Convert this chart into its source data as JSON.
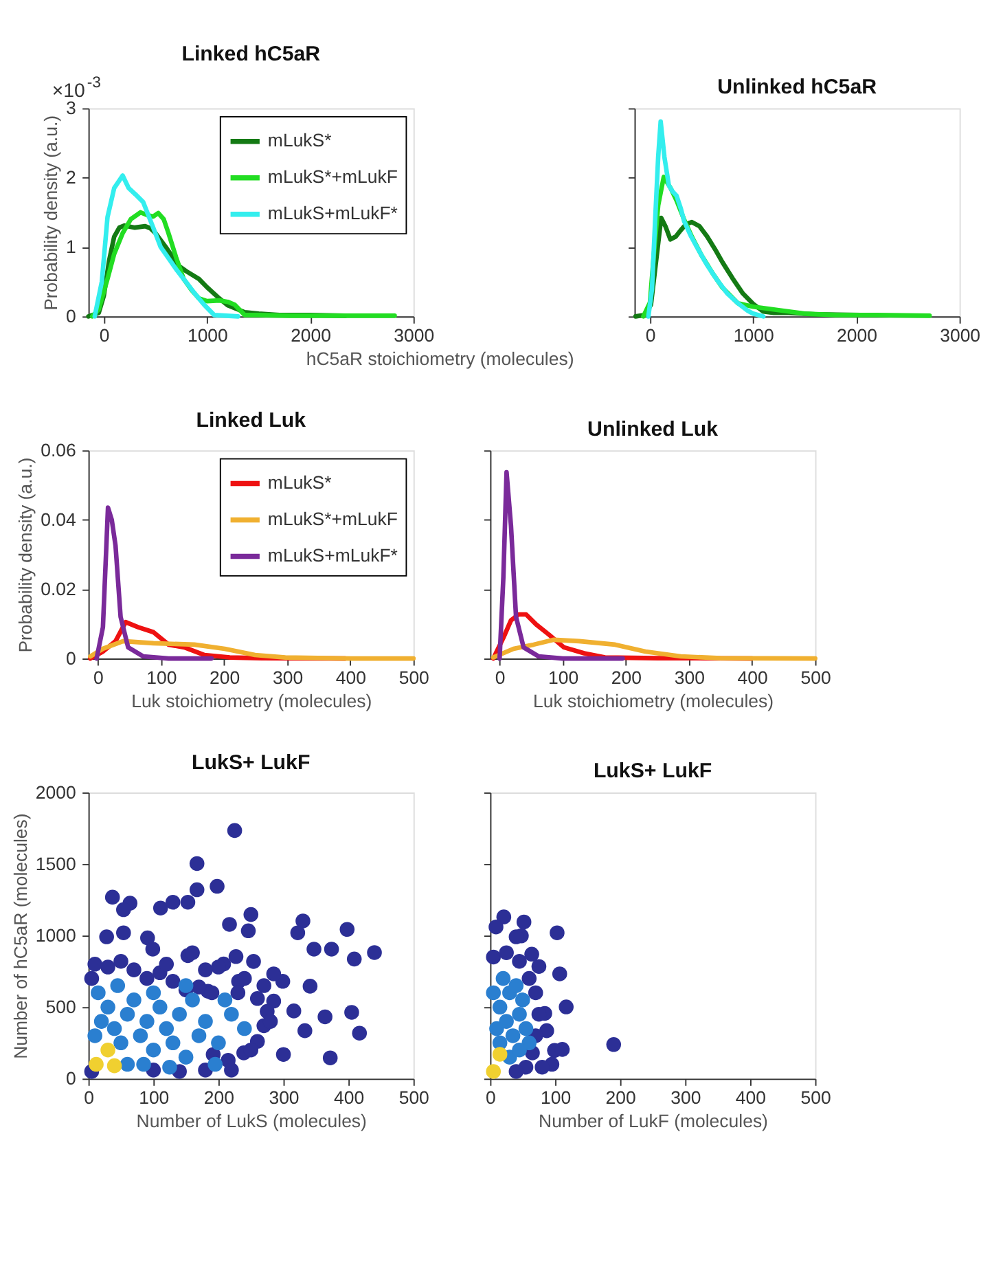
{
  "chart_data": [
    {
      "type": "line",
      "title": "Linked hC5aR",
      "xlabel": "hC5aR stoichiometry (molecules)",
      "ylabel": "Probability density (a.u.)",
      "xlim": [
        -150,
        3000
      ],
      "xticks": [
        0,
        1000,
        2000,
        3000
      ],
      "ylim": [
        0,
        3
      ],
      "yticks": [
        0,
        1,
        2,
        3
      ],
      "legend": "top right",
      "annotations": [
        "×10$^{-3}$"
      ],
      "series": [
        {
          "name": "mLukS*",
          "color": "#147a14",
          "x": [
            -150,
            -50,
            0,
            50,
            100,
            150,
            200,
            300,
            400,
            450,
            500,
            600,
            724,
            800,
            921,
            1000,
            1118,
            1200,
            1365,
            1500,
            1700,
            2000,
            2340
          ],
          "values": [
            0,
            0.05,
            0.3,
            0.8,
            1.15,
            1.28,
            1.31,
            1.28,
            1.3,
            1.27,
            1.2,
            1.0,
            0.73,
            0.65,
            0.54,
            0.42,
            0.26,
            0.16,
            0.06,
            0.04,
            0.02,
            0.02,
            0.01
          ]
        },
        {
          "name": "mLukS*+mLukF",
          "color": "#22dd22",
          "x": [
            -113,
            -50,
            35,
            100,
            182,
            260,
            355,
            420,
            478,
            527,
            580,
            626,
            700,
            773,
            850,
            921,
            1000,
            1118,
            1200,
            1266,
            1365,
            1500,
            1800,
            2200,
            2818
          ],
          "values": [
            0,
            0.1,
            0.54,
            0.9,
            1.2,
            1.4,
            1.5,
            1.46,
            1.44,
            1.49,
            1.4,
            1.2,
            0.85,
            0.54,
            0.38,
            0.26,
            0.22,
            0.23,
            0.21,
            0.17,
            0.02,
            0.02,
            0.01,
            0.01,
            0.01
          ]
        },
        {
          "name": "mLukS+mLukF*",
          "color": "#33eeee",
          "x": [
            -89,
            -20,
            35,
            100,
            182,
            240,
            305,
            380,
            478,
            550,
            626,
            700,
            773,
            870,
            970,
            1069,
            1300
          ],
          "values": [
            0,
            0.5,
            1.43,
            1.85,
            2.03,
            1.85,
            1.76,
            1.65,
            1.28,
            1.0,
            0.84,
            0.68,
            0.54,
            0.35,
            0.17,
            0.02,
            0
          ]
        }
      ]
    },
    {
      "type": "line",
      "title": "Unlinked hC5aR",
      "xlim": [
        -150,
        3000
      ],
      "xticks": [
        0,
        1000,
        2000,
        3000
      ],
      "ylim": [
        0,
        3
      ],
      "yticks": [
        0,
        1,
        2,
        3
      ],
      "tick_labels": "x",
      "series": [
        {
          "color": "#147a14",
          "x": [
            -139,
            -50,
            10,
            60,
            109,
            150,
            198,
            250,
            297,
            350,
            406,
            480,
            555,
            630,
            703,
            800,
            901,
            1000,
            1099,
            1200,
            1347,
            1600,
            2040
          ],
          "values": [
            0,
            0.02,
            0.17,
            0.8,
            1.42,
            1.3,
            1.11,
            1.15,
            1.24,
            1.33,
            1.36,
            1.3,
            1.15,
            0.97,
            0.78,
            0.55,
            0.33,
            0.18,
            0.07,
            0.05,
            0.05,
            0.03,
            0.02
          ]
        },
        {
          "color": "#22dd22",
          "x": [
            -64,
            0,
            35,
            80,
            134,
            200,
            258,
            330,
            406,
            500,
            604,
            700,
            852,
            1000,
            1149,
            1297,
            1500,
            1800,
            2200,
            2710
          ],
          "values": [
            0,
            0.2,
            0.84,
            1.6,
            2.01,
            1.85,
            1.67,
            1.4,
            1.15,
            0.88,
            0.63,
            0.42,
            0.19,
            0.14,
            0.11,
            0.08,
            0.04,
            0.02,
            0.02,
            0.01
          ]
        },
        {
          "color": "#33eeee",
          "x": [
            -15,
            20,
            50,
            80,
            104,
            140,
            183,
            220,
            258,
            300,
            332,
            400,
            455,
            550,
            653,
            750,
            852,
            950,
            1000,
            1099
          ],
          "values": [
            0,
            0.4,
            1.37,
            2.3,
            2.81,
            2.3,
            1.89,
            1.8,
            1.74,
            1.55,
            1.37,
            1.15,
            1.0,
            0.75,
            0.52,
            0.33,
            0.19,
            0.08,
            0.04,
            0
          ]
        }
      ]
    },
    {
      "type": "line",
      "title": "Linked Luk",
      "xlabel": "Luk stoichiometry (molecules)",
      "ylabel": "Probability density (a.u.)",
      "xlim": [
        -15,
        500
      ],
      "xticks": [
        0,
        100,
        200,
        300,
        400,
        500
      ],
      "ylim": [
        0,
        0.06
      ],
      "yticks": [
        0,
        0.02,
        0.04,
        0.06
      ],
      "legend": "top right",
      "series": [
        {
          "name": "mLukS*",
          "color": "#ee1111",
          "x": [
            -12,
            8,
            28,
            44,
            64,
            88,
            112,
            137,
            169,
            209,
            260,
            392
          ],
          "values": [
            0,
            0.002,
            0.005,
            0.0105,
            0.009,
            0.0076,
            0.004,
            0.0032,
            0.001,
            0.0003,
            0.0001,
            0
          ]
        },
        {
          "name": "mLukS*+mLukF",
          "color": "#f0b030",
          "x": [
            -12,
            8,
            40,
            88,
            153,
            201,
            249,
            297,
            400,
            500
          ],
          "values": [
            0.0006,
            0.0028,
            0.005,
            0.0044,
            0.004,
            0.0028,
            0.001,
            0.0003,
            0,
            0
          ]
        },
        {
          "name": "mLukS+mLukF*",
          "color": "#7a2a9a",
          "x": [
            -2,
            8,
            16,
            22,
            28,
            36,
            48,
            72,
            112,
            180
          ],
          "values": [
            0,
            0.009,
            0.0435,
            0.04,
            0.0325,
            0.012,
            0.0032,
            0.0006,
            0,
            0
          ]
        }
      ]
    },
    {
      "type": "line",
      "title": "Unlinked Luk",
      "xlabel": "Luk stoichiometry (molecules)",
      "xlim": [
        -15,
        500
      ],
      "xticks": [
        0,
        100,
        200,
        300,
        400,
        500
      ],
      "ylim": [
        0,
        0.06
      ],
      "yticks": [
        0,
        0.02,
        0.04,
        0.06
      ],
      "tick_labels": "x",
      "series": [
        {
          "color": "#ee1111",
          "x": [
            -10,
            6,
            18,
            30,
            42,
            58,
            78,
            102,
            134,
            167,
            250,
            400
          ],
          "values": [
            0,
            0.006,
            0.011,
            0.0127,
            0.0127,
            0.0098,
            0.0069,
            0.0032,
            0.0015,
            0.0003,
            0.0001,
            0
          ]
        },
        {
          "color": "#f0b030",
          "x": [
            -10,
            22,
            54,
            86,
            126,
            183,
            231,
            287,
            350,
            500
          ],
          "values": [
            0.0003,
            0.0028,
            0.004,
            0.0054,
            0.005,
            0.004,
            0.002,
            0.0006,
            0.0001,
            0
          ]
        },
        {
          "color": "#7a2a9a",
          "x": [
            0,
            6,
            11,
            18,
            26,
            38,
            62,
            100,
            195
          ],
          "values": [
            0,
            0.0237,
            0.0537,
            0.0383,
            0.012,
            0.0032,
            0.0006,
            0,
            0
          ]
        }
      ]
    },
    {
      "type": "scatter",
      "title": "LukS+ LukF",
      "xlabel": "Number of LukS (molecules)",
      "ylabel": "Number of hC5aR (molecules)",
      "xlim": [
        0,
        500
      ],
      "xticks": [
        0,
        100,
        200,
        300,
        400,
        500
      ],
      "ylim": [
        0,
        2000
      ],
      "yticks": [
        0,
        500,
        1000,
        1500,
        2000
      ],
      "marker": "circle",
      "series": [
        {
          "color": "#2c2f96",
          "x": [
            225,
            167,
            198,
            167,
            37,
            64,
            54,
            111,
            130,
            153,
            250,
            330,
            322,
            398,
            28,
            54,
            91,
            99,
            217,
            246,
            440,
            374,
            409,
            347,
            341,
            299,
            405,
            364,
            417,
            300,
            372,
            333,
            239,
            215,
            192,
            270,
            285,
            316,
            227,
            208,
            153,
            254,
            285,
            231,
            184,
            10,
            30,
            50,
            70,
            90,
            110,
            130,
            150,
            170,
            190,
            230,
            260,
            275,
            280,
            260,
            250,
            220,
            180,
            140,
            100,
            5,
            5,
            270,
            240,
            200,
            160,
            180,
            120
          ],
          "values": [
            1734,
            1503,
            1344,
            1320,
            1268,
            1226,
            1181,
            1192,
            1233,
            1233,
            1147,
            1102,
            1019,
            1043,
            991,
            1019,
            984,
            905,
            1078,
            1033,
            881,
            905,
            836,
            905,
            646,
            680,
            463,
            432,
            318,
            169,
            145,
            335,
            180,
            128,
            169,
            370,
            542,
            473,
            853,
            801,
            860,
            819,
            732,
            680,
            611,
            800,
            780,
            820,
            760,
            700,
            740,
            680,
            620,
            640,
            600,
            600,
            560,
            470,
            400,
            260,
            200,
            60,
            60,
            50,
            60,
            700,
            50,
            650,
            700,
            780,
            880,
            760,
            800
          ]
        },
        {
          "color": "#2a7fd0",
          "x": [
            10,
            20,
            30,
            40,
            50,
            60,
            70,
            80,
            90,
            100,
            110,
            120,
            130,
            140,
            150,
            160,
            170,
            180,
            200,
            220,
            240,
            15,
            45,
            85,
            125,
            195,
            60,
            100,
            150,
            210
          ],
          "values": [
            300,
            400,
            500,
            350,
            250,
            450,
            550,
            300,
            400,
            200,
            500,
            350,
            250,
            450,
            150,
            550,
            300,
            400,
            250,
            450,
            350,
            600,
            650,
            100,
            80,
            100,
            100,
            600,
            650,
            550
          ]
        },
        {
          "color": "#f0d030",
          "x": [
            12,
            30,
            40
          ],
          "values": [
            100,
            200,
            90
          ]
        }
      ]
    },
    {
      "type": "scatter",
      "title": "LukS+ LukF",
      "xlabel": "Number of LukF (molecules)",
      "xlim": [
        0,
        500
      ],
      "xticks": [
        0,
        100,
        200,
        300,
        400,
        500
      ],
      "ylim": [
        0,
        2000
      ],
      "yticks": [
        0,
        500,
        1000,
        1500,
        2000
      ],
      "tick_labels": "x",
      "marker": "circle",
      "series": [
        {
          "color": "#2c2f96",
          "x": [
            190,
            103,
            107,
            117,
            48,
            52,
            21,
            9,
            40,
            99,
            111,
            95,
            87,
            84,
            75,
            64,
            5,
            25,
            45,
            60,
            70,
            75,
            70,
            65,
            55,
            40,
            80
          ],
          "values": [
            238,
            1019,
            732,
            501,
            998,
            1095,
            1130,
            1060,
            991,
            197,
            204,
            100,
            335,
            456,
            784,
            870,
            850,
            880,
            820,
            700,
            600,
            450,
            300,
            180,
            80,
            50,
            80
          ]
        },
        {
          "color": "#2a7fd0",
          "x": [
            5,
            15,
            25,
            35,
            45,
            10,
            20,
            30,
            40,
            50,
            55,
            60,
            30,
            45,
            15
          ],
          "values": [
            600,
            500,
            400,
            300,
            450,
            350,
            700,
            600,
            650,
            550,
            350,
            250,
            150,
            200,
            250
          ]
        },
        {
          "color": "#f0d030",
          "x": [
            5,
            15
          ],
          "values": [
            50,
            170
          ]
        }
      ]
    }
  ]
}
